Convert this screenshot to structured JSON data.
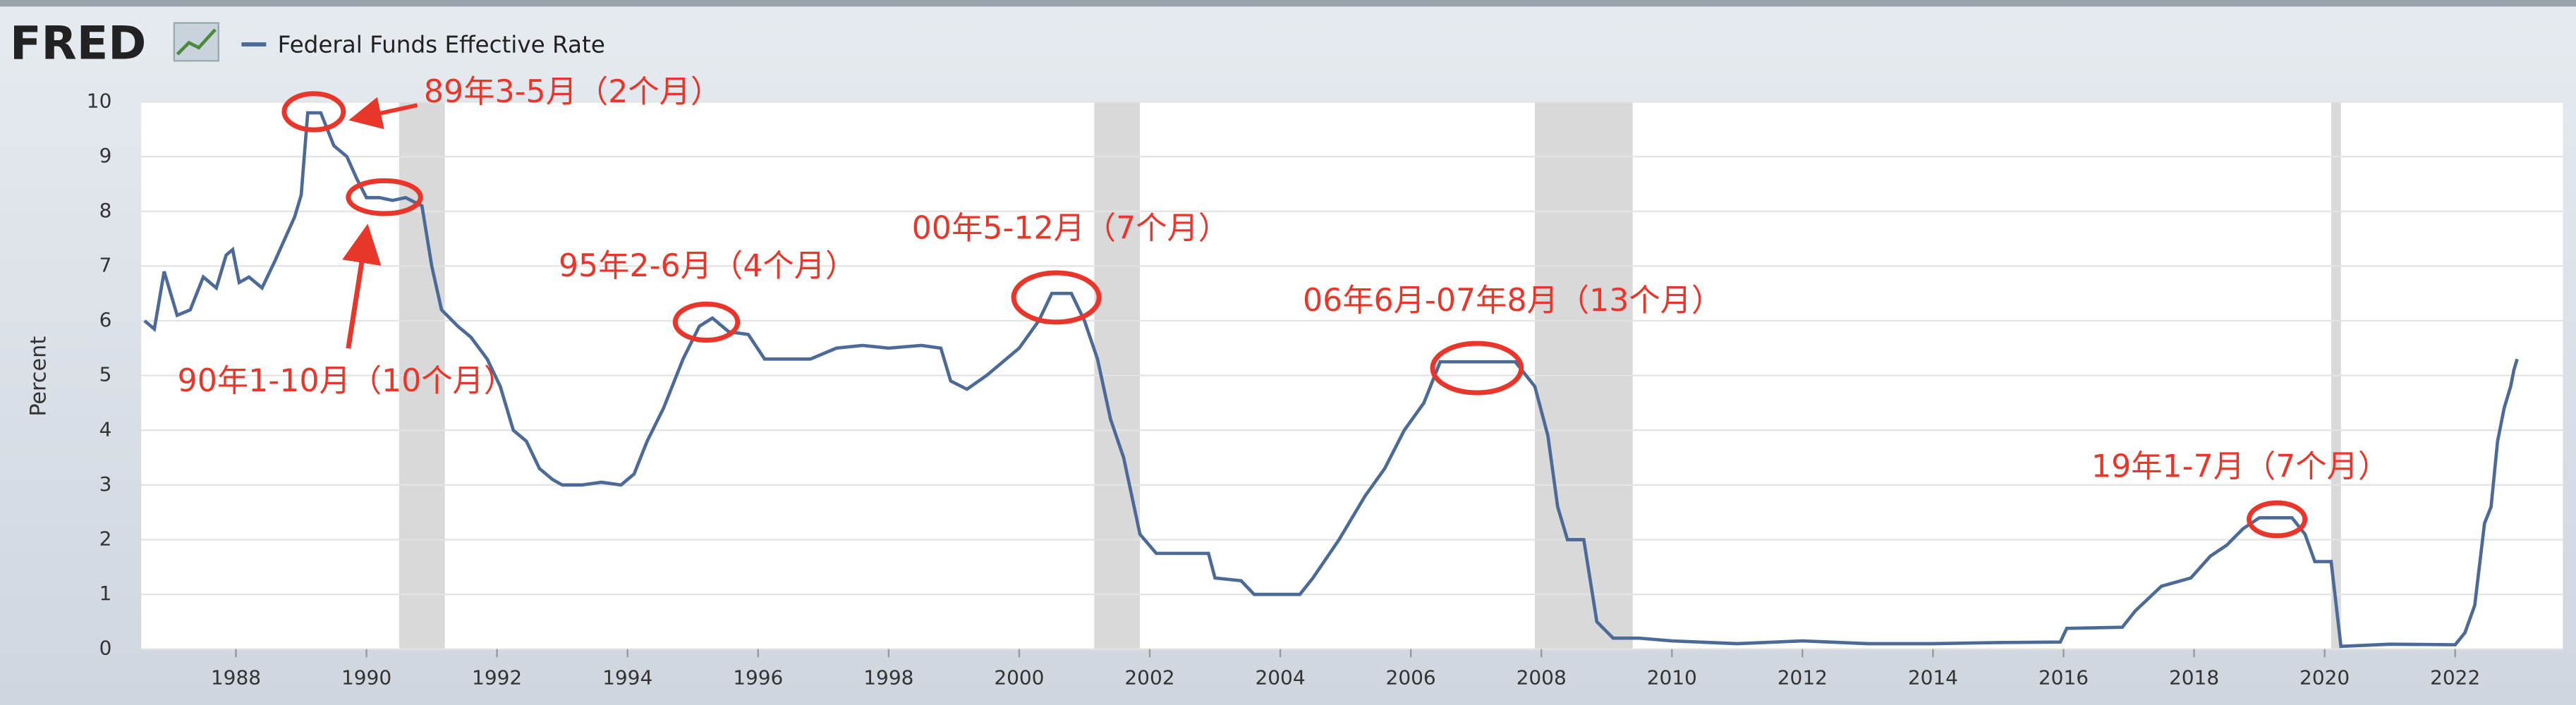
{
  "header": {
    "logo": "FRED"
  },
  "chart_data": {
    "type": "line",
    "y_label": "Percent",
    "x": [
      1986.6,
      1986.75,
      1986.9,
      1987.1,
      1987.3,
      1987.5,
      1987.7,
      1987.85,
      1987.95,
      1988.05,
      1988.2,
      1988.4,
      1988.6,
      1988.75,
      1988.9,
      1989.0,
      1989.1,
      1989.3,
      1989.5,
      1989.7,
      1989.85,
      1990.0,
      1990.2,
      1990.4,
      1990.6,
      1990.85,
      1991.0,
      1991.15,
      1991.4,
      1991.6,
      1991.85,
      1992.05,
      1992.25,
      1992.45,
      1992.65,
      1992.85,
      1993.0,
      1993.3,
      1993.6,
      1993.9,
      1994.1,
      1994.3,
      1994.55,
      1994.85,
      1995.1,
      1995.3,
      1995.55,
      1995.85,
      1996.1,
      1996.4,
      1996.8,
      1997.2,
      1997.6,
      1998.0,
      1998.5,
      1998.8,
      1998.95,
      1999.2,
      1999.5,
      1999.8,
      2000.0,
      2000.3,
      2000.5,
      2000.8,
      2001.0,
      2001.2,
      2001.4,
      2001.6,
      2001.85,
      2002.1,
      2002.5,
      2002.9,
      2003.0,
      2003.4,
      2003.6,
      2004.3,
      2004.5,
      2004.9,
      2005.3,
      2005.6,
      2005.9,
      2006.2,
      2006.45,
      2007.6,
      2007.9,
      2008.1,
      2008.25,
      2008.4,
      2008.65,
      2008.85,
      2009.1,
      2009.5,
      2010.0,
      2011.0,
      2012.0,
      2013.0,
      2014.0,
      2015.0,
      2015.95,
      2016.05,
      2016.9,
      2017.1,
      2017.5,
      2017.95,
      2018.25,
      2018.5,
      2018.75,
      2019.0,
      2019.5,
      2019.7,
      2019.85,
      2020.1,
      2020.25,
      2021.0,
      2022.0,
      2022.15,
      2022.3,
      2022.45,
      2022.55,
      2022.65,
      2022.75,
      2022.85,
      2022.9,
      2022.95
    ],
    "series": [
      {
        "name": "Federal Funds Effective Rate",
        "color": "#4b6a98",
        "values": [
          6.0,
          5.85,
          6.9,
          6.1,
          6.2,
          6.8,
          6.6,
          7.2,
          7.3,
          6.7,
          6.8,
          6.6,
          7.1,
          7.5,
          7.9,
          8.3,
          9.8,
          9.8,
          9.2,
          9.0,
          8.6,
          8.25,
          8.25,
          8.2,
          8.25,
          8.1,
          7.0,
          6.2,
          5.9,
          5.7,
          5.3,
          4.8,
          4.0,
          3.8,
          3.3,
          3.1,
          3.0,
          3.0,
          3.05,
          3.0,
          3.2,
          3.8,
          4.4,
          5.3,
          5.9,
          6.05,
          5.8,
          5.75,
          5.3,
          5.3,
          5.3,
          5.5,
          5.55,
          5.5,
          5.55,
          5.5,
          4.9,
          4.75,
          5.0,
          5.3,
          5.5,
          6.0,
          6.5,
          6.5,
          6.0,
          5.3,
          4.2,
          3.5,
          2.1,
          1.75,
          1.75,
          1.75,
          1.3,
          1.25,
          1.0,
          1.0,
          1.3,
          2.0,
          2.8,
          3.3,
          4.0,
          4.5,
          5.25,
          5.25,
          4.8,
          3.9,
          2.6,
          2.0,
          2.0,
          0.5,
          0.2,
          0.2,
          0.15,
          0.1,
          0.15,
          0.1,
          0.1,
          0.12,
          0.13,
          0.38,
          0.4,
          0.7,
          1.15,
          1.3,
          1.7,
          1.9,
          2.2,
          2.4,
          2.4,
          2.1,
          1.6,
          1.6,
          0.05,
          0.09,
          0.08,
          0.3,
          0.8,
          2.3,
          2.6,
          3.8,
          4.4,
          4.8,
          5.1,
          5.3
        ]
      }
    ],
    "recessions": [
      [
        1990.5,
        1991.2
      ],
      [
        2001.15,
        2001.85
      ],
      [
        2007.9,
        2009.4
      ],
      [
        2020.1,
        2020.25
      ]
    ],
    "xlim": [
      1986.55,
      2023.65
    ],
    "xticks": [
      1988,
      1990,
      1992,
      1994,
      1996,
      1998,
      2000,
      2002,
      2004,
      2006,
      2008,
      2010,
      2012,
      2014,
      2016,
      2018,
      2020,
      2022
    ],
    "ylim": [
      0,
      10
    ],
    "yticks": [
      0,
      1,
      2,
      3,
      4,
      5,
      6,
      7,
      8,
      9,
      10
    ],
    "grid": true,
    "annotations": [
      "89年3-5月（2个月）",
      "90年1-10月（10个月）",
      "95年2-6月（4个月）",
      "00年5-12月（7个月）",
      "06年6月-07年8月（13个月）",
      "19年1-7月（7个月）"
    ],
    "annotation_color": "#e8362b"
  }
}
